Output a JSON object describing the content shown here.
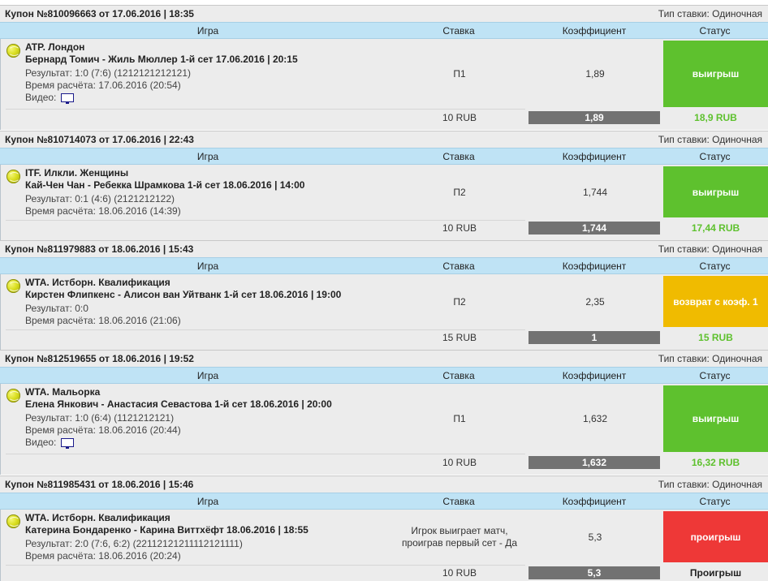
{
  "header_labels": {
    "game": "Игра",
    "stake": "Ставка",
    "coef": "Коэффициент",
    "status": "Статус"
  },
  "coupons": [
    {
      "title": "Купон №810096663 от 17.06.2016 | 18:35",
      "bet_type": "Тип ставки: Одиночная",
      "league": "ATP. Лондон",
      "match": "Бернард Томич - Жиль Мюллер 1-й сет 17.06.2016 | 20:15",
      "result": "Результат: 1:0 (7:6) (1212121212121)",
      "calc_time": "Время расчёта: 17.06.2016 (20:54)",
      "video": "Видео:",
      "bet": "П1",
      "coef": "1,89",
      "status": "выигрыш",
      "stake": "10 RUB",
      "total_coef": "1,89",
      "payout": "18,9 RUB"
    },
    {
      "title": "Купон №810714073 от 17.06.2016 | 22:43",
      "bet_type": "Тип ставки: Одиночная",
      "league": "ITF. Илкли. Женщины",
      "match": "Кай-Чен Чан - Ребекка Шрамкова 1-й сет 18.06.2016 | 14:00",
      "result": "Результат: 0:1 (4:6) (2121212122)",
      "calc_time": "Время расчёта: 18.06.2016 (14:39)",
      "bet": "П2",
      "coef": "1,744",
      "status": "выигрыш",
      "stake": "10 RUB",
      "total_coef": "1,744",
      "payout": "17,44 RUB"
    },
    {
      "title": "Купон №811979883 от 18.06.2016 | 15:43",
      "bet_type": "Тип ставки: Одиночная",
      "league": "WTA. Истборн. Квалификация",
      "match": "Кирстен Флипкенс - Алисон ван Уйтванк 1-й сет 18.06.2016 | 19:00",
      "result": "Результат: 0:0",
      "calc_time": "Время расчёта: 18.06.2016 (21:06)",
      "bet": "П2",
      "coef": "2,35",
      "status": "возврат с коэф. 1",
      "stake": "15 RUB",
      "total_coef": "1",
      "payout": "15 RUB"
    },
    {
      "title": "Купон №812519655 от 18.06.2016 | 19:52",
      "bet_type": "Тип ставки: Одиночная",
      "league": "WTA. Мальорка",
      "match": "Елена Янкович - Анастасия Севастова 1-й сет 18.06.2016 | 20:00",
      "result": "Результат: 1:0 (6:4) (1121212121)",
      "calc_time": "Время расчёта: 18.06.2016 (20:44)",
      "video": "Видео:",
      "bet": "П1",
      "coef": "1,632",
      "status": "выигрыш",
      "stake": "10 RUB",
      "total_coef": "1,632",
      "payout": "16,32 RUB"
    },
    {
      "title": "Купон №811985431 от 18.06.2016 | 15:46",
      "bet_type": "Тип ставки: Одиночная",
      "league": "WTA. Истборн. Квалификация",
      "match": "Катерина Бондаренко - Карина Виттхёфт 18.06.2016 | 18:55",
      "result": "Результат: 2:0 (7:6, 6:2) (22112121211112121111)",
      "calc_time": "Время расчёта: 18.06.2016 (20:24)",
      "bet_line1": "Игрок выиграет матч,",
      "bet_line2": "проиграв первый сет - Да",
      "coef": "5,3",
      "status": "проигрыш",
      "stake": "10 RUB",
      "total_coef": "5,3",
      "payout": "Проигрыш"
    }
  ],
  "colors": {
    "win": "#5ec12e",
    "return": "#f0bb00",
    "lose": "#ee3837",
    "header_blue": "#bfe3f5",
    "coef_box": "#727272"
  },
  "icons": {
    "sport": "tennis-ball-icon",
    "video": "monitor-icon"
  }
}
